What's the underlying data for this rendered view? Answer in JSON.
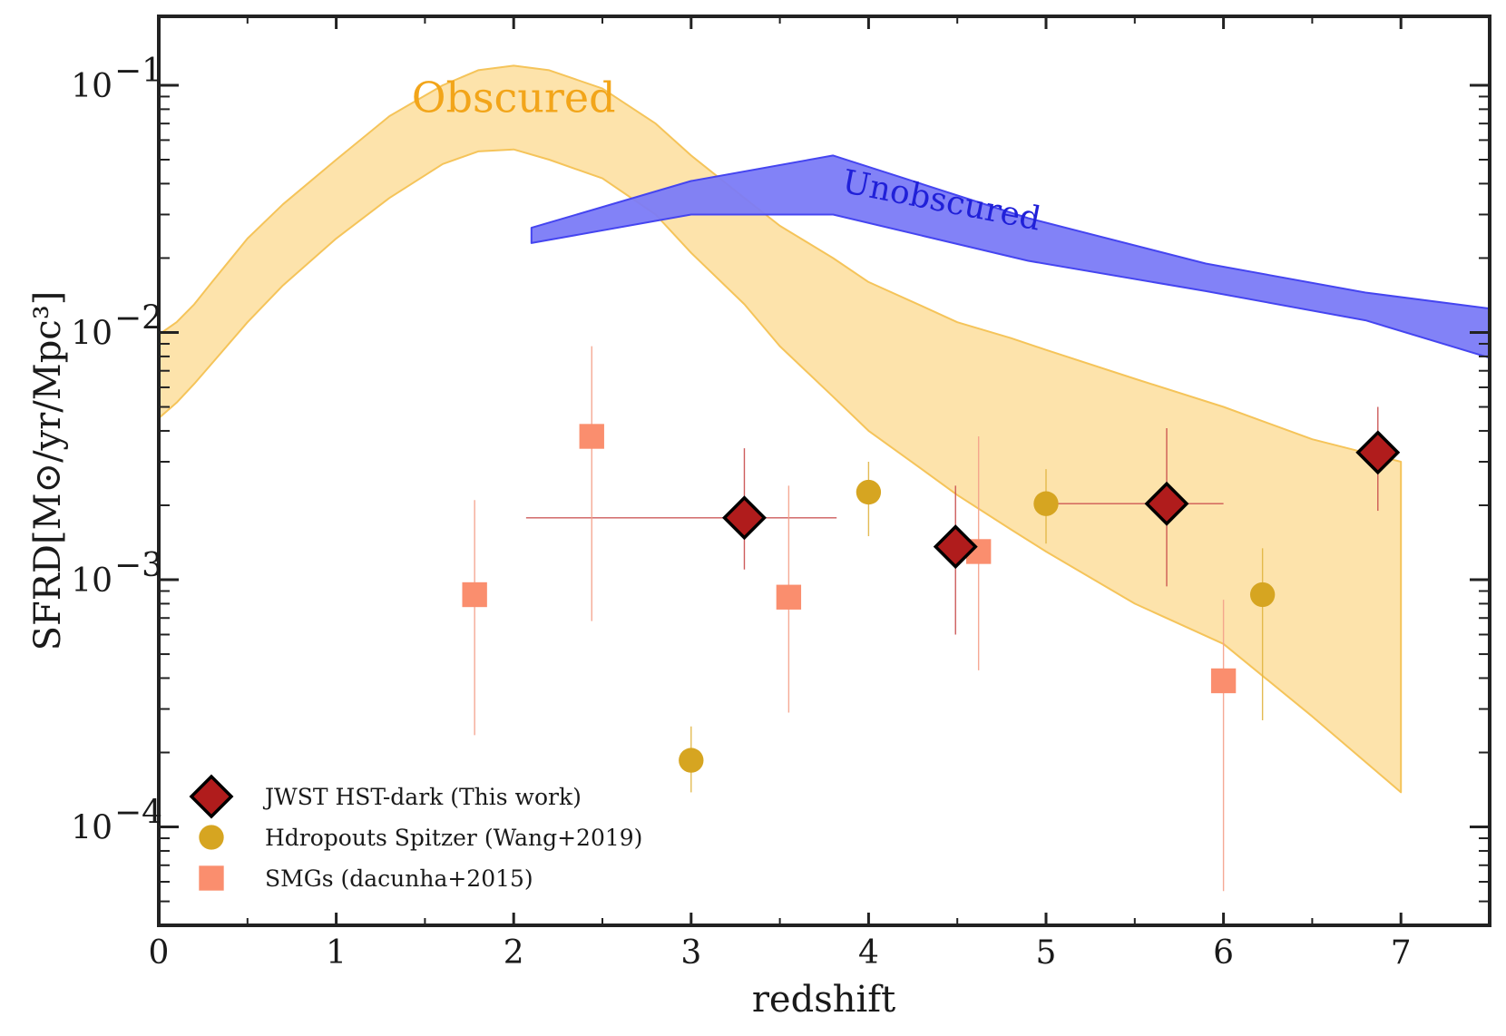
{
  "chart_data": {
    "type": "scatter",
    "title": "",
    "xlabel": "redshift",
    "ylabel": "SFRD[M⊙/yr/Mpc³]",
    "xlim": [
      0,
      7.5
    ],
    "ylim": [
      4e-05,
      0.19
    ],
    "yscale": "log",
    "xticks": [
      0,
      1,
      2,
      3,
      4,
      5,
      6,
      7
    ],
    "xtick_labels": [
      "0",
      "1",
      "2",
      "3",
      "4",
      "5",
      "6",
      "7"
    ],
    "yticks": [
      0.0001,
      0.001,
      0.01,
      0.1
    ],
    "ytick_labels": [
      {
        "base": "10",
        "exp": "−4"
      },
      {
        "base": "10",
        "exp": "−3"
      },
      {
        "base": "10",
        "exp": "−2"
      },
      {
        "base": "10",
        "exp": "−1"
      }
    ],
    "bands": [
      {
        "name": "Obscured",
        "label": "Obscured",
        "color": "#fcd98f",
        "edge_color": "#f5c45a",
        "label_color": "#f2a51a",
        "label_at": [
          2.0,
          0.078
        ],
        "label_rotation": 0,
        "x": [
          0,
          0.1,
          0.2,
          0.3,
          0.5,
          0.7,
          1.0,
          1.3,
          1.6,
          1.8,
          2.0,
          2.2,
          2.5,
          2.8,
          3.0,
          3.3,
          3.5,
          3.8,
          4.0,
          4.3,
          4.5,
          4.8,
          5.0,
          5.5,
          6.0,
          6.5,
          7.0
        ],
        "upper": [
          0.0098,
          0.011,
          0.013,
          0.016,
          0.024,
          0.033,
          0.05,
          0.075,
          0.1,
          0.115,
          0.12,
          0.115,
          0.097,
          0.07,
          0.052,
          0.035,
          0.027,
          0.02,
          0.016,
          0.0128,
          0.011,
          0.0095,
          0.0085,
          0.0065,
          0.005,
          0.0037,
          0.003
        ],
        "lower": [
          0.0045,
          0.0052,
          0.0062,
          0.0075,
          0.011,
          0.0155,
          0.024,
          0.035,
          0.048,
          0.054,
          0.055,
          0.05,
          0.042,
          0.03,
          0.021,
          0.013,
          0.0088,
          0.0055,
          0.004,
          0.0028,
          0.0022,
          0.0016,
          0.0013,
          0.0008,
          0.00055,
          0.00028,
          0.000138
        ]
      },
      {
        "name": "Unobscured",
        "label": "Unobscured",
        "color": "#7b7bf7",
        "edge_color": "#4545f0",
        "label_color": "#2020d8",
        "label_at": [
          4.4,
          0.031
        ],
        "label_rotation": 11,
        "x": [
          2.1,
          3.0,
          3.8,
          4.9,
          5.9,
          6.8,
          7.5
        ],
        "upper": [
          0.0265,
          0.041,
          0.052,
          0.029,
          0.019,
          0.0145,
          0.0125
        ],
        "lower": [
          0.023,
          0.03,
          0.03,
          0.0195,
          0.0147,
          0.0112,
          0.0079
        ]
      }
    ],
    "series": [
      {
        "name": "JWST HST-dark (This work)",
        "marker": "diamond",
        "color": "#b01c1c",
        "edge": "#000000",
        "err_color": "#c84a4a",
        "points": [
          {
            "x": 3.3,
            "y": 0.00178,
            "xerr": [
              2.07,
              3.82
            ],
            "yerr": [
              0.0011,
              0.0034
            ]
          },
          {
            "x": 4.49,
            "y": 0.00136,
            "xerr": null,
            "yerr": [
              0.0006,
              0.0024
            ]
          },
          {
            "x": 5.68,
            "y": 0.00203,
            "xerr": [
              5.0,
              6.0
            ],
            "yerr": [
              0.00094,
              0.0041
            ]
          },
          {
            "x": 6.87,
            "y": 0.00327,
            "xerr": null,
            "yerr": [
              0.0019,
              0.005
            ]
          }
        ]
      },
      {
        "name": "Hdropouts Spitzer (Wang+2019)",
        "marker": "circle",
        "color": "#d6a521",
        "edge": "#d6a521",
        "err_color": "#e0b440",
        "points": [
          {
            "x": 3.0,
            "y": 0.000186,
            "xerr": null,
            "yerr": [
              0.000138,
              0.000255
            ]
          },
          {
            "x": 4.0,
            "y": 0.00226,
            "xerr": null,
            "yerr": [
              0.0015,
              0.003
            ]
          },
          {
            "x": 5.0,
            "y": 0.00203,
            "xerr": null,
            "yerr": [
              0.0014,
              0.0028
            ]
          },
          {
            "x": 6.22,
            "y": 0.00087,
            "xerr": null,
            "yerr": [
              0.00027,
              0.00134
            ]
          }
        ]
      },
      {
        "name": "SMGs (dacunha+2015)",
        "marker": "square",
        "color": "#fa8e6e",
        "edge": "#fa8e6e",
        "err_color": "#f4a08a",
        "points": [
          {
            "x": 1.78,
            "y": 0.00087,
            "xerr": null,
            "yerr": [
              0.000235,
              0.0021
            ]
          },
          {
            "x": 2.44,
            "y": 0.0038,
            "xerr": null,
            "yerr": [
              0.00068,
              0.0088
            ]
          },
          {
            "x": 3.55,
            "y": 0.00085,
            "xerr": null,
            "yerr": [
              0.00029,
              0.0024
            ]
          },
          {
            "x": 4.62,
            "y": 0.0013,
            "xerr": null,
            "yerr": [
              0.00043,
              0.0038
            ]
          },
          {
            "x": 6.0,
            "y": 0.00039,
            "xerr": null,
            "yerr": [
              5.5e-05,
              0.00083
            ]
          }
        ]
      }
    ],
    "legend": {
      "location": "lower-left",
      "entries": [
        "JWST HST-dark (This work)",
        "Hdropouts Spitzer (Wang+2019)",
        "SMGs (dacunha+2015)"
      ]
    }
  }
}
